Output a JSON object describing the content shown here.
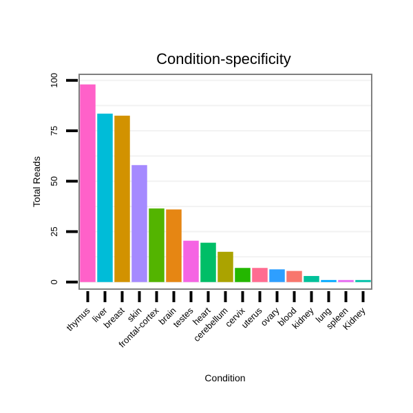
{
  "chart_data": {
    "type": "bar",
    "title": "Condition-specificity",
    "xlabel": "Condition",
    "ylabel": "Total Reads",
    "ylim": [
      -3.5,
      103
    ],
    "yticks": [
      0,
      25,
      50,
      75,
      100
    ],
    "grid": true,
    "categories": [
      "thymus",
      "liver",
      "breast",
      "skin",
      "frontal-cortex",
      "brain",
      "testes",
      "heart",
      "cerebellum",
      "cervix",
      "uterus",
      "ovary",
      "blood",
      "kidney",
      "lung",
      "spleen",
      "Kidney"
    ],
    "values": [
      98,
      83.5,
      82.5,
      58,
      36.5,
      36,
      20.5,
      19.5,
      15,
      7,
      7,
      6.3,
      5.5,
      3,
      1,
      1,
      1
    ],
    "colors": [
      "#ff61c9",
      "#00bcd8",
      "#d29200",
      "#a58aff",
      "#53b400",
      "#e68613",
      "#f564e3",
      "#00be67",
      "#aba300",
      "#24b700",
      "#ff6c91",
      "#2e9fff",
      "#f8766d",
      "#00c19a",
      "#00a9ff",
      "#e76bf3",
      "#00c1a9"
    ]
  }
}
